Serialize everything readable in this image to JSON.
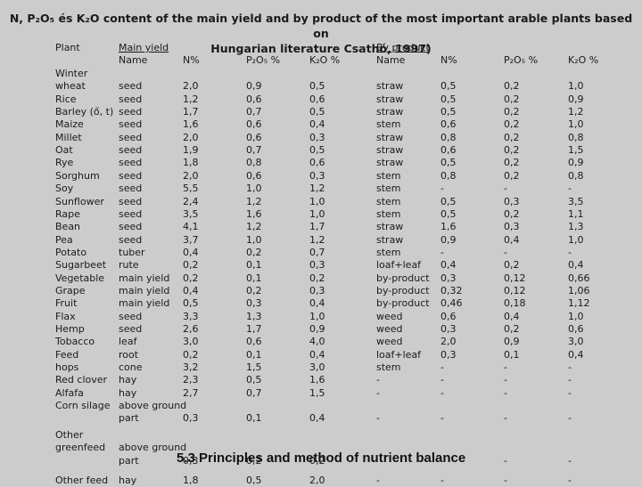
{
  "title_line1": "N, P₂O₅ és K₂O content of  the main yield and by product of the most important arable plants based on",
  "title_line2": "Hungarian literature Csathó, 1997)",
  "headers": {
    "plant": "Plant",
    "main_yield_top": "Main yield",
    "main_name": "Name",
    "main_n": "N%",
    "main_p": "P₂O₅ %",
    "main_k": "K₂O %",
    "by_top": "By product",
    "by_name": "Name",
    "by_n": "N%",
    "by_p": "P₂O₅ %",
    "by_k": "K₂O %"
  },
  "rows": [
    {
      "plant": "Winter",
      "main": "",
      "n": "",
      "p": "",
      "k": "",
      "by": "",
      "bn": "",
      "bp": "",
      "bk": ""
    },
    {
      "plant": "wheat",
      "main": "seed",
      "n": "2,0",
      "p": "0,9",
      "k": "0,5",
      "by": "straw",
      "bn": "0,5",
      "bp": "0,2",
      "bk": "1,0"
    },
    {
      "plant": "Rice",
      "main": "seed",
      "n": "1,2",
      "p": "0,6",
      "k": "0,6",
      "by": "straw",
      "bn": "0,5",
      "bp": "0,2",
      "bk": "0,9"
    },
    {
      "plant": "Barley (ő, t)",
      "main": "seed",
      "n": "1,7",
      "p": "0,7",
      "k": "0,5",
      "by": "straw",
      "bn": "0,5",
      "bp": "0,2",
      "bk": "1,2"
    },
    {
      "plant": "Maize",
      "main": "seed",
      "n": "1,6",
      "p": "0,6",
      "k": "0,4",
      "by": "stem",
      "bn": "0,6",
      "bp": "0,2",
      "bk": "1,0"
    },
    {
      "plant": "Millet",
      "main": "seed",
      "n": "2,0",
      "p": "0,6",
      "k": "0,3",
      "by": "straw",
      "bn": "0,8",
      "bp": "0,2",
      "bk": "0,8"
    },
    {
      "plant": "Oat",
      "main": "seed",
      "n": "1,9",
      "p": "0,7",
      "k": "0,5",
      "by": "straw",
      "bn": "0,6",
      "bp": "0,2",
      "bk": "1,5"
    },
    {
      "plant": "Rye",
      "main": "seed",
      "n": "1,8",
      "p": "0,8",
      "k": "0,6",
      "by": "straw",
      "bn": "0,5",
      "bp": "0,2",
      "bk": "0,9"
    },
    {
      "plant": "Sorghum",
      "main": "seed",
      "n": "2,0",
      "p": "0,6",
      "k": "0,3",
      "by": "stem",
      "bn": "0,8",
      "bp": "0,2",
      "bk": "0,8"
    },
    {
      "plant": "Soy",
      "main": "seed",
      "n": "5,5",
      "p": "1,0",
      "k": "1,2",
      "by": "stem",
      "bn": "-",
      "bp": "-",
      "bk": "-"
    },
    {
      "plant": "Sunflower",
      "main": "seed",
      "n": "2,4",
      "p": "1,2",
      "k": "1,0",
      "by": "stem",
      "bn": "0,5",
      "bp": "0,3",
      "bk": "3,5"
    },
    {
      "plant": "Rape",
      "main": "seed",
      "n": "3,5",
      "p": "1,6",
      "k": "1,0",
      "by": "stem",
      "bn": "0,5",
      "bp": "0,2",
      "bk": "1,1"
    },
    {
      "plant": "Bean",
      "main": "seed",
      "n": "4,1",
      "p": "1,2",
      "k": "1,7",
      "by": "straw",
      "bn": "1,6",
      "bp": "0,3",
      "bk": "1,3"
    },
    {
      "plant": "Pea",
      "main": "seed",
      "n": "3,7",
      "p": "1,0",
      "k": "1,2",
      "by": "straw",
      "bn": "0,9",
      "bp": "0,4",
      "bk": "1,0"
    },
    {
      "plant": "Potato",
      "main": "tuber",
      "n": "0,4",
      "p": "0,2",
      "k": "0,7",
      "by": "stem",
      "bn": "-",
      "bp": "-",
      "bk": "-"
    },
    {
      "plant": "Sugarbeet",
      "main": "rute",
      "n": "0,2",
      "p": "0,1",
      "k": "0,3",
      "by": "loaf+leaf",
      "bn": "0,4",
      "bp": "0,2",
      "bk": "0,4"
    },
    {
      "plant": "Vegetable",
      "main": "main yield",
      "n": "0,2",
      "p": "0,1",
      "k": "0,2",
      "by": "by-product",
      "bn": "0,3",
      "bp": "0,12",
      "bk": "0,66"
    },
    {
      "plant": "Grape",
      "main": "main yield",
      "n": "0,4",
      "p": "0,2",
      "k": "0,3",
      "by": "by-product",
      "bn": "0,32",
      "bp": "0,12",
      "bk": "1,06"
    },
    {
      "plant": "Fruit",
      "main": "main yield",
      "n": "0,5",
      "p": "0,3",
      "k": "0,4",
      "by": "by-product",
      "bn": "0,46",
      "bp": "0,18",
      "bk": "1,12"
    },
    {
      "plant": "Flax",
      "main": "seed",
      "n": "3,3",
      "p": "1,3",
      "k": "1,0",
      "by": "weed",
      "bn": "0,6",
      "bp": "0,4",
      "bk": "1,0"
    },
    {
      "plant": "Hemp",
      "main": "seed",
      "n": "2,6",
      "p": "1,7",
      "k": "0,9",
      "by": "weed",
      "bn": "0,3",
      "bp": "0,2",
      "bk": "0,6"
    },
    {
      "plant": "Tobacco",
      "main": "leaf",
      "n": "3,0",
      "p": "0,6",
      "k": "4,0",
      "by": "weed",
      "bn": "2,0",
      "bp": "0,9",
      "bk": "3,0"
    },
    {
      "plant": "Feed",
      "main": "root",
      "n": "0,2",
      "p": "0,1",
      "k": "0,4",
      "by": "loaf+leaf",
      "bn": "0,3",
      "bp": "0,1",
      "bk": "0,4"
    },
    {
      "plant": "hops",
      "main": "cone",
      "n": "3,2",
      "p": "1,5",
      "k": "3,0",
      "by": "stem",
      "bn": "-",
      "bp": "-",
      "bk": "-"
    },
    {
      "plant": "Red clover",
      "main": "hay",
      "n": "2,3",
      "p": "0,5",
      "k": "1,6",
      "by": "-",
      "bn": "-",
      "bp": "-",
      "bk": "-"
    },
    {
      "plant": "Alfafa",
      "main": "hay",
      "n": "2,7",
      "p": "0,7",
      "k": "1,5",
      "by": "-",
      "bn": "-",
      "bp": "-",
      "bk": "-"
    },
    {
      "plant": "Corn silage",
      "main": "above ground",
      "n": "",
      "p": "",
      "k": "",
      "by": "",
      "bn": "",
      "bp": "",
      "bk": ""
    },
    {
      "plant": "",
      "main": "part",
      "n": "0,3",
      "p": "0,1",
      "k": "0,4",
      "by": "-",
      "bn": "-",
      "bp": "-",
      "bk": "-"
    },
    {
      "plant": "Other",
      "main": "",
      "n": "",
      "p": "",
      "k": "",
      "by": "",
      "bn": "",
      "bp": "",
      "bk": ""
    },
    {
      "plant": "greenfeed",
      "main": "above ground",
      "n": "",
      "p": "",
      "k": "",
      "by": "",
      "bn": "",
      "bp": "",
      "bk": ""
    },
    {
      "plant": "",
      "main": "part",
      "n": "0,3",
      "p": "0,2",
      "k": "0,2",
      "by": "",
      "bn": "",
      "bp": "-",
      "bk": "-"
    },
    {
      "plant": "Other feed",
      "main": "hay",
      "n": "1,8",
      "p": "0,5",
      "k": "2,0",
      "by": "-",
      "bn": "-",
      "bp": "-",
      "bk": "-"
    }
  ],
  "footer": "5.3 Principles and method of nutrient balance"
}
